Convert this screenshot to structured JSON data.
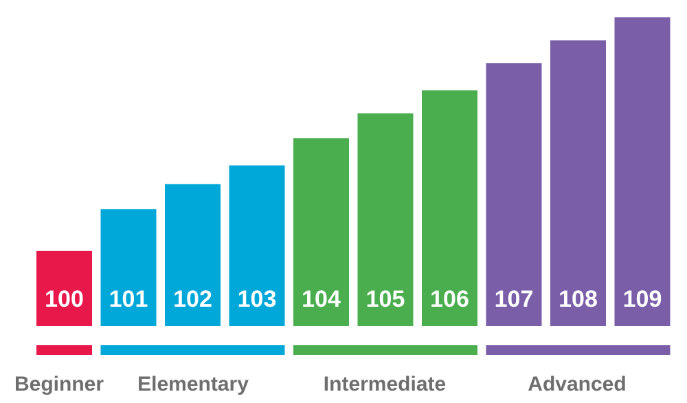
{
  "chart_data": {
    "type": "bar",
    "categories": [
      "100",
      "101",
      "102",
      "103",
      "104",
      "105",
      "106",
      "107",
      "108",
      "109"
    ],
    "values": [
      3.6,
      5.6,
      6.8,
      7.7,
      9.0,
      10.2,
      11.3,
      12.6,
      13.7,
      14.8
    ],
    "ylim": [
      0,
      15.5
    ],
    "grid": false,
    "legend": "none",
    "xlabel": "",
    "ylabel": "",
    "groups": [
      {
        "label": "Beginner",
        "start": 0,
        "end": 0,
        "color": "#e8184a"
      },
      {
        "label": "Elementary",
        "start": 1,
        "end": 3,
        "color": "#00a8d9"
      },
      {
        "label": "Intermediate",
        "start": 4,
        "end": 6,
        "color": "#4aad4e"
      },
      {
        "label": "Advanced",
        "start": 7,
        "end": 9,
        "color": "#7a5ea8"
      }
    ]
  }
}
